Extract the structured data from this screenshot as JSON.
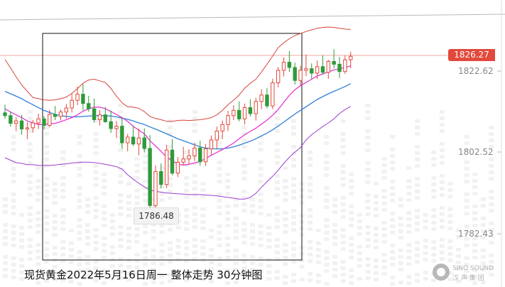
{
  "logo": {
    "wordmark": "SINO SOUND",
    "subtitle": "汉 声 集 团"
  },
  "chart_data": {
    "type": "candlestick",
    "title": "现货黄金2022年5月16日周一 整体走势 30分钟图",
    "current_price": "1826.27",
    "low_annotation": "1786.48",
    "y_ticks": [
      "1822.62",
      "1802.52",
      "1782.43"
    ],
    "y_tick_values": [
      1822.62,
      1802.52,
      1782.43
    ],
    "ylim": [
      1774.0,
      1852.0
    ],
    "grid": false,
    "colors": {
      "up": "#e2493c",
      "down": "#2f9a3a",
      "upper_band": "#d6453a",
      "lower_band": "#9c3fd1",
      "ma_fast": "#e43ad6",
      "ma_slow": "#2f7fd6"
    },
    "candles": [
      [
        1812.3,
        1814.3,
        1810.8,
        1811.6
      ],
      [
        1811.6,
        1812.6,
        1808.9,
        1809.7
      ],
      [
        1809.7,
        1811.2,
        1807.8,
        1810.3
      ],
      [
        1810.3,
        1811.8,
        1806.9,
        1808.3
      ],
      [
        1808.3,
        1810.0,
        1805.8,
        1808.6
      ],
      [
        1808.6,
        1810.5,
        1807.4,
        1809.8
      ],
      [
        1809.8,
        1812.1,
        1808.3,
        1810.8
      ],
      [
        1810.8,
        1811.5,
        1808.2,
        1809.2
      ],
      [
        1809.2,
        1813.0,
        1808.7,
        1811.9
      ],
      [
        1811.9,
        1814.0,
        1810.5,
        1811.4
      ],
      [
        1811.4,
        1813.1,
        1810.4,
        1812.5
      ],
      [
        1812.5,
        1814.5,
        1810.9,
        1813.5
      ],
      [
        1813.5,
        1817.1,
        1812.4,
        1815.4
      ],
      [
        1815.4,
        1818.8,
        1814.2,
        1816.9
      ],
      [
        1816.9,
        1819.4,
        1812.9,
        1814.6
      ],
      [
        1814.6,
        1816.5,
        1812.6,
        1813.3
      ],
      [
        1813.3,
        1815.8,
        1809.9,
        1810.6
      ],
      [
        1810.6,
        1813.0,
        1809.2,
        1811.8
      ],
      [
        1811.8,
        1813.8,
        1809.8,
        1810.1
      ],
      [
        1810.1,
        1812.9,
        1807.3,
        1808.4
      ],
      [
        1808.4,
        1810.3,
        1806.1,
        1809.0
      ],
      [
        1809.0,
        1811.2,
        1803.4,
        1804.9
      ],
      [
        1804.9,
        1807.1,
        1802.8,
        1806.3
      ],
      [
        1806.3,
        1809.1,
        1804.1,
        1804.6
      ],
      [
        1804.6,
        1808.4,
        1801.8,
        1806.1
      ],
      [
        1806.1,
        1808.5,
        1802.5,
        1803.5
      ],
      [
        1803.5,
        1806.8,
        1786.5,
        1789.4
      ],
      [
        1789.4,
        1799.3,
        1788.6,
        1797.8
      ],
      [
        1797.8,
        1799.8,
        1793.7,
        1794.6
      ],
      [
        1794.6,
        1804.4,
        1793.7,
        1803.1
      ],
      [
        1803.1,
        1805.8,
        1796.9,
        1797.4
      ],
      [
        1797.4,
        1801.4,
        1796.4,
        1800.1
      ],
      [
        1800.1,
        1803.9,
        1799.3,
        1800.9
      ],
      [
        1800.9,
        1803.3,
        1799.5,
        1801.7
      ],
      [
        1801.7,
        1804.8,
        1800.4,
        1803.6
      ],
      [
        1803.6,
        1805.4,
        1799.2,
        1800.2
      ],
      [
        1800.2,
        1804.6,
        1799.2,
        1803.4
      ],
      [
        1803.4,
        1806.7,
        1801.9,
        1805.6
      ],
      [
        1805.6,
        1808.9,
        1803.4,
        1807.8
      ],
      [
        1807.8,
        1810.4,
        1805.8,
        1809.4
      ],
      [
        1809.4,
        1812.8,
        1807.8,
        1811.6
      ],
      [
        1811.6,
        1814.2,
        1810.5,
        1812.9
      ],
      [
        1812.9,
        1815.1,
        1810.2,
        1810.8
      ],
      [
        1810.8,
        1814.6,
        1809.4,
        1813.6
      ],
      [
        1813.6,
        1815.6,
        1811.4,
        1812.1
      ],
      [
        1812.1,
        1816.0,
        1810.4,
        1815.1
      ],
      [
        1815.1,
        1818.1,
        1813.2,
        1816.7
      ],
      [
        1816.7,
        1818.4,
        1813.4,
        1814.0
      ],
      [
        1814.0,
        1820.7,
        1813.2,
        1819.7
      ],
      [
        1819.7,
        1823.6,
        1818.6,
        1822.8
      ],
      [
        1822.8,
        1826.0,
        1821.3,
        1824.8
      ],
      [
        1824.8,
        1827.6,
        1822.4,
        1823.5
      ],
      [
        1823.5,
        1824.7,
        1819.3,
        1820.3
      ],
      [
        1820.3,
        1823.9,
        1819.0,
        1822.8
      ],
      [
        1822.8,
        1826.7,
        1821.4,
        1823.2
      ],
      [
        1823.2,
        1824.5,
        1820.6,
        1822.1
      ],
      [
        1822.1,
        1825.2,
        1820.7,
        1823.7
      ],
      [
        1823.7,
        1826.5,
        1821.7,
        1822.3
      ],
      [
        1822.3,
        1825.4,
        1820.7,
        1825.0
      ],
      [
        1825.0,
        1828.0,
        1823.3,
        1824.3
      ],
      [
        1824.3,
        1826.1,
        1820.9,
        1822.5
      ],
      [
        1822.5,
        1826.5,
        1821.9,
        1825.4
      ],
      [
        1825.4,
        1827.4,
        1823.3,
        1826.27
      ]
    ],
    "upper_band": [
      1825.5,
      1823.4,
      1821.2,
      1819.2,
      1817.6,
      1816.1,
      1815.8,
      1815.5,
      1815.4,
      1815.5,
      1815.8,
      1816.2,
      1817.1,
      1818.3,
      1819.6,
      1820.4,
      1820.6,
      1820.2,
      1819.8,
      1818.3,
      1816.4,
      1814.8,
      1813.8,
      1813.7,
      1813.4,
      1812.6,
      1811.4,
      1810.9,
      1810.6,
      1810.2,
      1810.2,
      1810.4,
      1810.5,
      1810.4,
      1810.5,
      1810.6,
      1810.8,
      1811.1,
      1811.8,
      1812.9,
      1814.3,
      1815.4,
      1816.7,
      1818.4,
      1819.6,
      1820.6,
      1822.4,
      1824.3,
      1826.3,
      1828.4,
      1829.6,
      1830.6,
      1831.4,
      1831.9,
      1832.4,
      1832.8,
      1833.2,
      1833.4,
      1833.5,
      1833.4,
      1833.2,
      1833.0,
      1832.9
    ],
    "lower_band": [
      1801.2,
      1800.6,
      1800.0,
      1799.8,
      1799.5,
      1799.5,
      1799.3,
      1799.3,
      1799.3,
      1799.4,
      1799.6,
      1799.7,
      1799.9,
      1800.0,
      1800.1,
      1800.1,
      1800.0,
      1799.8,
      1799.6,
      1799.3,
      1799.0,
      1798.4,
      1797.0,
      1795.9,
      1794.9,
      1794.0,
      1793.2,
      1792.9,
      1792.7,
      1792.5,
      1792.4,
      1792.3,
      1792.2,
      1792.1,
      1792.1,
      1792.1,
      1792.0,
      1791.9,
      1791.8,
      1791.6,
      1791.4,
      1791.2,
      1791.0,
      1791.0,
      1791.4,
      1792.4,
      1793.9,
      1795.3,
      1796.6,
      1798.1,
      1799.8,
      1801.3,
      1802.6,
      1803.7,
      1805.6,
      1806.9,
      1807.9,
      1808.9,
      1809.8,
      1810.8,
      1812.1,
      1813.1,
      1813.9
    ],
    "ma_fast": [
      1813.3,
      1812.5,
      1811.8,
      1811.1,
      1810.3,
      1809.8,
      1809.4,
      1809.4,
      1809.6,
      1809.7,
      1810.1,
      1810.6,
      1811.1,
      1811.8,
      1812.7,
      1813.3,
      1813.7,
      1813.7,
      1813.3,
      1812.6,
      1811.9,
      1811.1,
      1810.2,
      1809.0,
      1808.0,
      1807.1,
      1805.4,
      1804.1,
      1802.8,
      1801.3,
      1800.5,
      1799.6,
      1799.4,
      1799.6,
      1799.9,
      1800.3,
      1801.0,
      1801.8,
      1802.5,
      1803.2,
      1804.0,
      1804.8,
      1805.9,
      1806.9,
      1807.7,
      1808.5,
      1809.5,
      1810.5,
      1811.7,
      1813.1,
      1814.9,
      1816.6,
      1818.0,
      1819.0,
      1819.8,
      1820.6,
      1821.4,
      1821.9,
      1822.4,
      1822.9,
      1823.2,
      1823.5,
      1823.9
    ],
    "ma_slow": [
      1817.6,
      1817.0,
      1816.4,
      1815.8,
      1815.0,
      1814.3,
      1813.6,
      1812.9,
      1812.4,
      1811.9,
      1811.6,
      1811.4,
      1811.3,
      1811.3,
      1811.4,
      1811.5,
      1811.6,
      1811.6,
      1811.6,
      1811.5,
      1811.3,
      1811.0,
      1810.7,
      1810.3,
      1809.8,
      1809.4,
      1808.8,
      1808.3,
      1807.7,
      1807.1,
      1806.5,
      1805.9,
      1805.4,
      1804.9,
      1804.4,
      1803.9,
      1803.6,
      1803.4,
      1803.4,
      1803.4,
      1803.6,
      1803.9,
      1804.3,
      1804.8,
      1805.3,
      1805.9,
      1806.6,
      1807.3,
      1808.1,
      1809.0,
      1810.0,
      1811.0,
      1812.0,
      1812.9,
      1813.8,
      1814.7,
      1815.6,
      1816.3,
      1817.0,
      1817.6,
      1818.2,
      1818.8,
      1819.5
    ]
  }
}
